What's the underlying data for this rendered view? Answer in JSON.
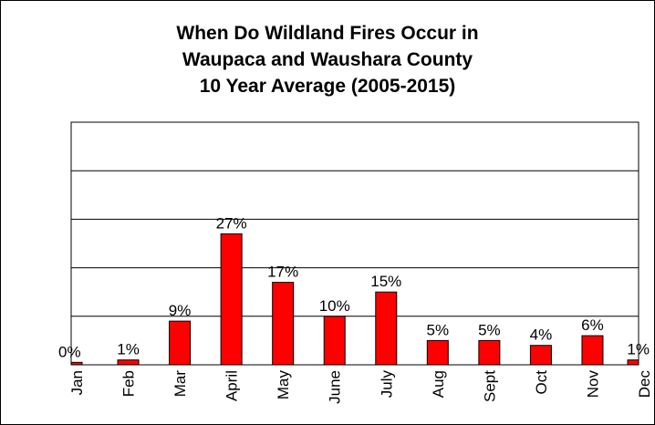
{
  "chart_data": {
    "type": "bar",
    "title_lines": [
      "When Do Wildland Fires Occur in",
      "Waupaca and Waushara County",
      "10 Year Average  (2005-2015)"
    ],
    "categories": [
      "Jan",
      "Feb",
      "Mar",
      "April",
      "May",
      "June",
      "July",
      "Aug",
      "Sept",
      "Oct",
      "Nov",
      "Dec"
    ],
    "values": [
      0.5,
      1,
      9,
      27,
      17,
      10,
      15,
      5,
      5,
      4,
      6,
      1
    ],
    "data_labels": [
      "0%",
      "1%",
      "9%",
      "27%",
      "17%",
      "10%",
      "15%",
      "5%",
      "5%",
      "4%",
      "6%",
      "1%"
    ],
    "ylim": [
      0,
      50
    ],
    "grid": true,
    "bar_color": "#ff0000",
    "bar_edge_color": "#000000"
  }
}
